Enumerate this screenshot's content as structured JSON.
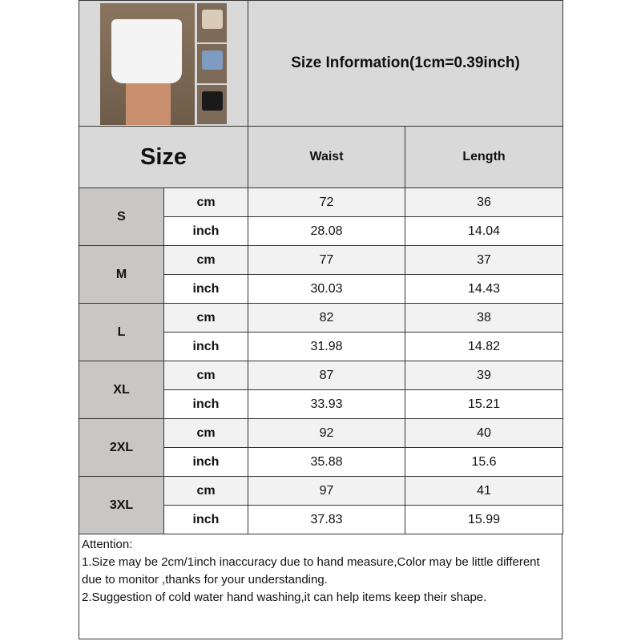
{
  "title": "Size Information(1cm=0.39inch)",
  "header": {
    "size": "Size",
    "columns": [
      "Waist",
      "Length"
    ]
  },
  "colors": {
    "header_bg": "#d9d9d9",
    "size_label_bg": "#c9c6c6",
    "cm_row_bg": "#f2f2f2"
  },
  "product_image": {
    "swatches": [
      "#f4f4f4",
      "#d8cbb8",
      "#7e9cc0",
      "#1a1a1a"
    ]
  },
  "rows": [
    {
      "size": "S",
      "cm": {
        "unit": "cm",
        "waist": "72",
        "length": "36"
      },
      "inch": {
        "unit": "inch",
        "waist": "28.08",
        "length": "14.04"
      }
    },
    {
      "size": "M",
      "cm": {
        "unit": "cm",
        "waist": "77",
        "length": "37"
      },
      "inch": {
        "unit": "inch",
        "waist": "30.03",
        "length": "14.43"
      }
    },
    {
      "size": "L",
      "cm": {
        "unit": "cm",
        "waist": "82",
        "length": "38"
      },
      "inch": {
        "unit": "inch",
        "waist": "31.98",
        "length": "14.82"
      }
    },
    {
      "size": "XL",
      "cm": {
        "unit": "cm",
        "waist": "87",
        "length": "39"
      },
      "inch": {
        "unit": "inch",
        "waist": "33.93",
        "length": "15.21"
      }
    },
    {
      "size": "2XL",
      "cm": {
        "unit": "cm",
        "waist": "92",
        "length": "40"
      },
      "inch": {
        "unit": "inch",
        "waist": "35.88",
        "length": "15.6"
      }
    },
    {
      "size": "3XL",
      "cm": {
        "unit": "cm",
        "waist": "97",
        "length": "41"
      },
      "inch": {
        "unit": "inch",
        "waist": "37.83",
        "length": "15.99"
      }
    }
  ],
  "notes": {
    "heading": "Attention:",
    "line1": "1.Size may be 2cm/1inch inaccuracy due to hand measure,Color may be little different due to monitor ,thanks for your understanding.",
    "line2": "2.Suggestion of cold water hand washing,it can help items keep their shape."
  }
}
